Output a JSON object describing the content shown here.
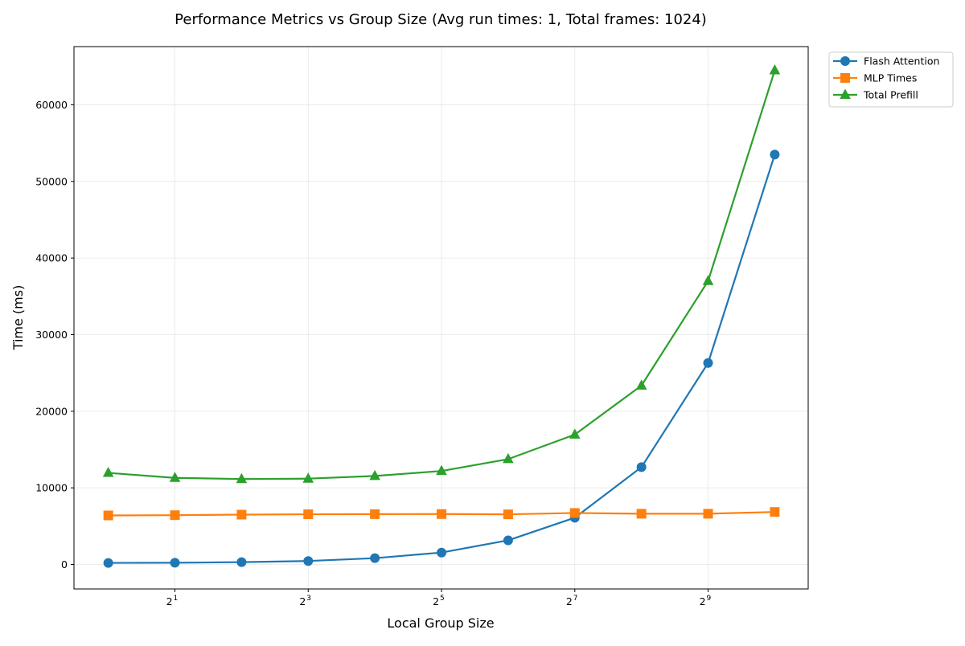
{
  "chart_data": {
    "type": "line",
    "title": "Performance Metrics vs Group Size (Avg run times: 1, Total frames: 1024)",
    "xlabel": "Local Group Size",
    "ylabel": "Time (ms)",
    "x_scale": "log2",
    "x": [
      1,
      2,
      4,
      8,
      16,
      32,
      64,
      128,
      256,
      512,
      1024
    ],
    "xlim": [
      0.7,
      1450
    ],
    "ylim": [
      -3200,
      67600
    ],
    "x_ticks": [
      {
        "value": 2,
        "base": "2",
        "exponent": "1"
      },
      {
        "value": 8,
        "base": "2",
        "exponent": "3"
      },
      {
        "value": 32,
        "base": "2",
        "exponent": "5"
      },
      {
        "value": 128,
        "base": "2",
        "exponent": "7"
      },
      {
        "value": 512,
        "base": "2",
        "exponent": "9"
      }
    ],
    "y_ticks": [
      {
        "value": 0,
        "label": "0"
      },
      {
        "value": 10000,
        "label": "10000"
      },
      {
        "value": 20000,
        "label": "20000"
      },
      {
        "value": 30000,
        "label": "30000"
      },
      {
        "value": 40000,
        "label": "40000"
      },
      {
        "value": 50000,
        "label": "50000"
      },
      {
        "value": 60000,
        "label": "60000"
      }
    ],
    "grid": true,
    "legend_position": "outside top-right",
    "series": [
      {
        "name": "Flash Attention",
        "color": "#1f77b4",
        "marker": "circle",
        "values": [
          200,
          220,
          300,
          450,
          820,
          1550,
          3150,
          6100,
          12700,
          26300,
          53500
        ]
      },
      {
        "name": "MLP Times",
        "color": "#ff7f0e",
        "marker": "square",
        "values": [
          6400,
          6430,
          6500,
          6550,
          6570,
          6580,
          6540,
          6720,
          6620,
          6620,
          6850
        ]
      },
      {
        "name": "Total Prefill",
        "color": "#2ca02c",
        "marker": "triangle",
        "values": [
          11950,
          11300,
          11150,
          11200,
          11550,
          12200,
          13750,
          16950,
          23350,
          37000,
          64500
        ]
      }
    ]
  }
}
